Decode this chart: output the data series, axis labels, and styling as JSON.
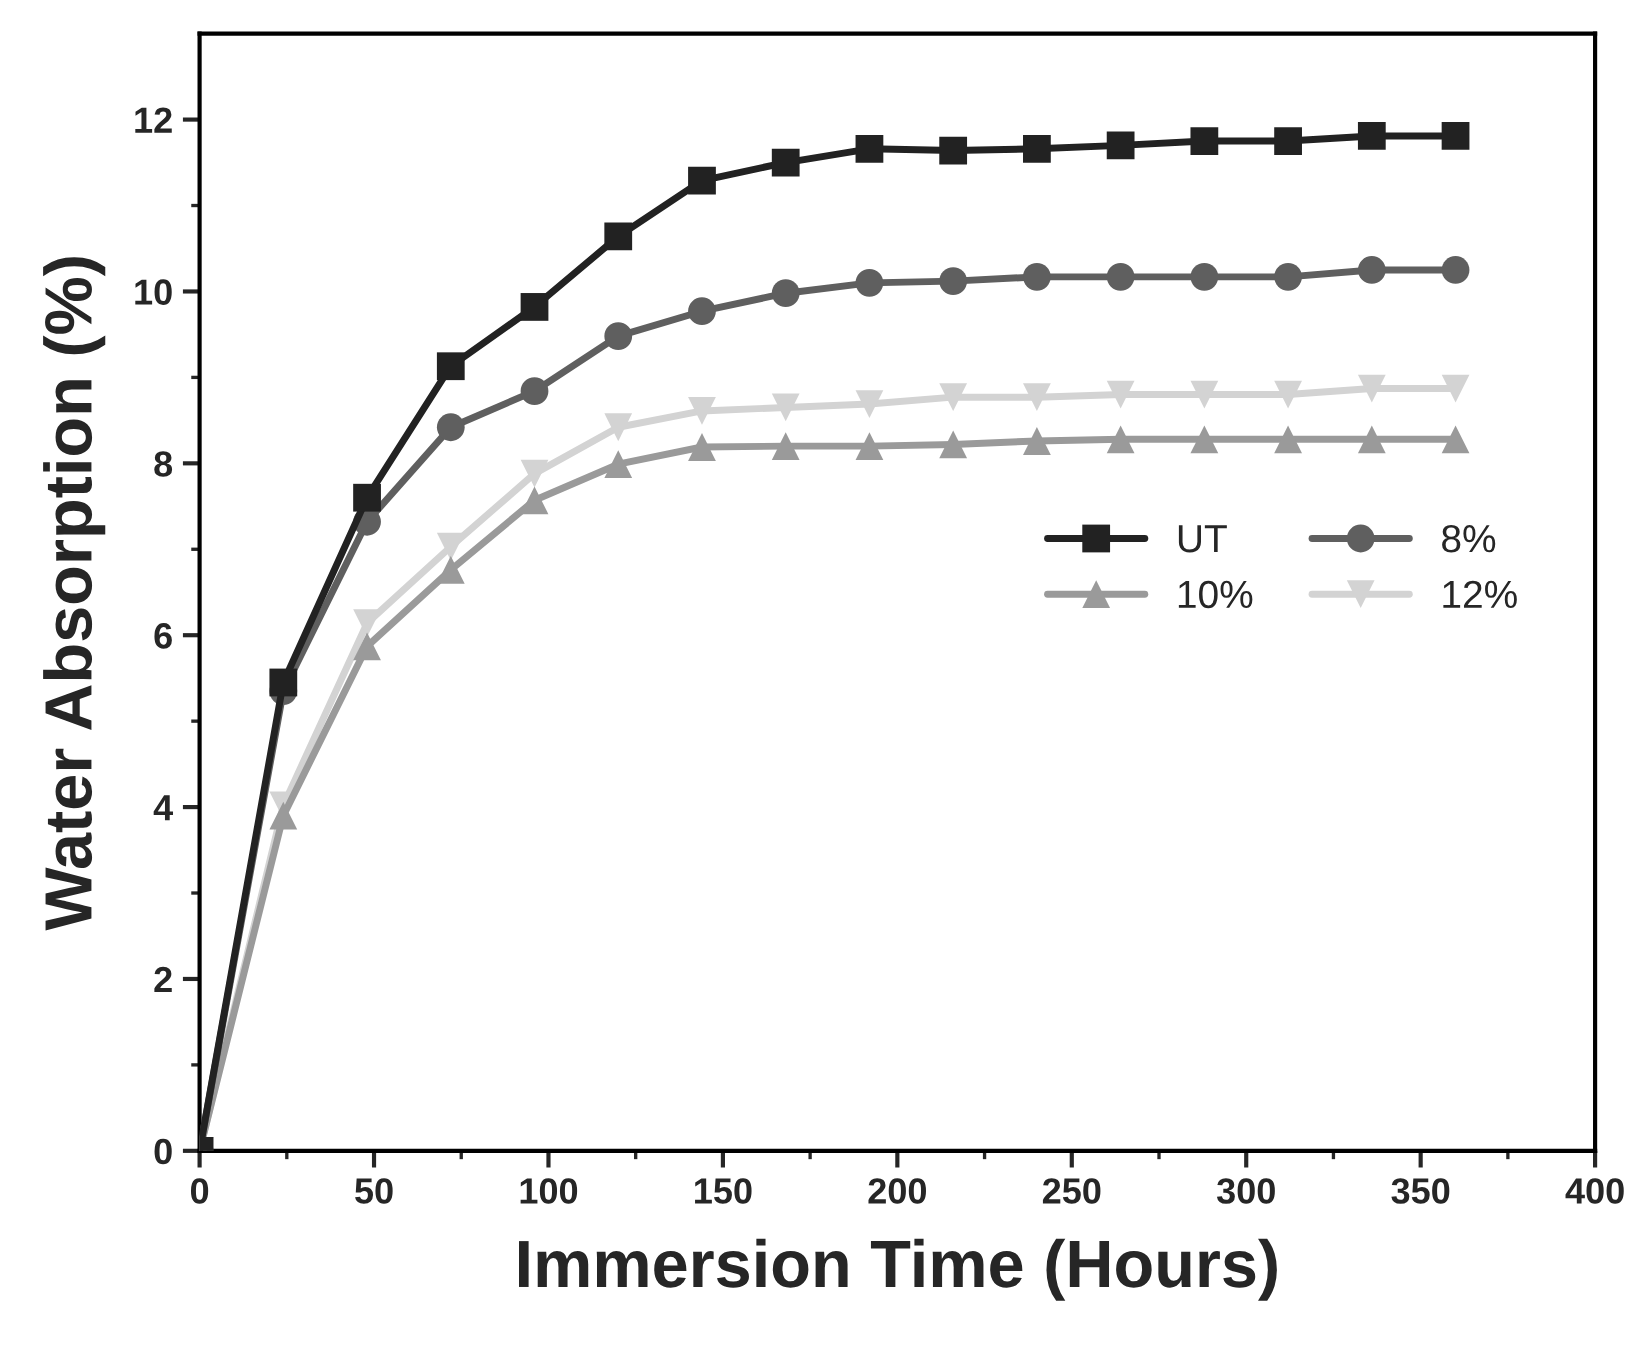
{
  "chart_data": {
    "type": "line",
    "xlabel": "Immersion Time (Hours)",
    "ylabel": "Water Absorption (%)",
    "x": [
      0,
      24,
      48,
      72,
      96,
      120,
      144,
      168,
      192,
      216,
      240,
      264,
      288,
      312,
      336,
      360
    ],
    "series": [
      {
        "name": "UT",
        "color": "#222222",
        "marker": "square",
        "values": [
          0,
          5.45,
          7.6,
          9.13,
          9.82,
          10.64,
          11.29,
          11.5,
          11.66,
          11.64,
          11.66,
          11.7,
          11.75,
          11.75,
          11.81,
          11.81
        ]
      },
      {
        "name": "8%",
        "color": "#5f5f5f",
        "marker": "circle",
        "values": [
          0,
          5.35,
          7.32,
          8.42,
          8.84,
          9.48,
          9.77,
          9.98,
          10.1,
          10.12,
          10.17,
          10.17,
          10.17,
          10.17,
          10.25,
          10.25
        ]
      },
      {
        "name": "10%",
        "color": "#9a9a9a",
        "marker": "triangle",
        "values": [
          0,
          3.9,
          5.87,
          6.76,
          7.57,
          7.99,
          8.19,
          8.2,
          8.2,
          8.22,
          8.26,
          8.28,
          8.28,
          8.28,
          8.28,
          8.28
        ]
      },
      {
        "name": "12%",
        "color": "#d3d3d3",
        "marker": "triangle_down",
        "values": [
          0,
          4.02,
          6.14,
          7.03,
          7.88,
          8.42,
          8.61,
          8.65,
          8.69,
          8.77,
          8.77,
          8.8,
          8.8,
          8.8,
          8.87,
          8.87
        ]
      }
    ],
    "xlim": [
      0,
      400
    ],
    "xticks": [
      0,
      50,
      100,
      150,
      200,
      250,
      300,
      350,
      400
    ],
    "ylim": [
      0,
      13
    ],
    "yticks": [
      0,
      2,
      4,
      6,
      8,
      10,
      12
    ],
    "grid": false,
    "legend": "right",
    "line_style": "solid"
  }
}
